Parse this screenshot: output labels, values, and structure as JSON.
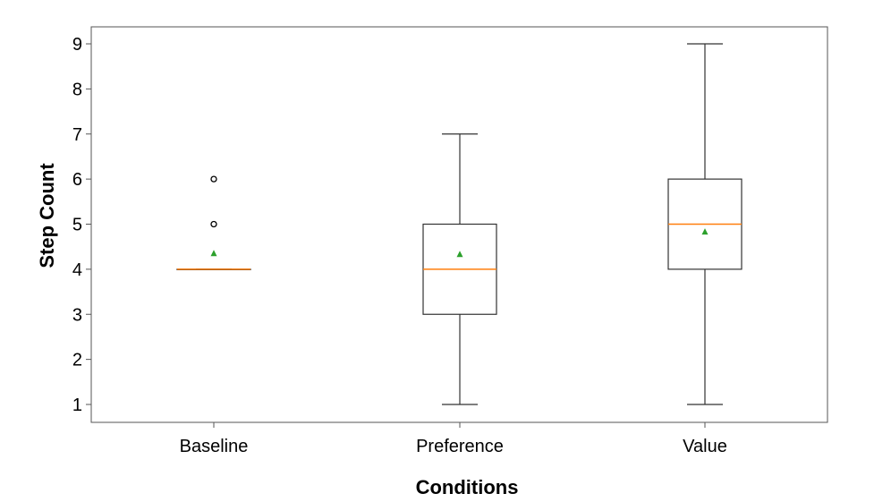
{
  "chart_data": {
    "type": "box",
    "title": "",
    "xlabel": "Conditions",
    "ylabel": "Step Count",
    "ylim": [
      0.6,
      9.4
    ],
    "yticks": [
      1,
      2,
      3,
      4,
      5,
      6,
      7,
      8,
      9
    ],
    "grid": false,
    "categories": [
      "Baseline",
      "Preference",
      "Value"
    ],
    "boxes": [
      {
        "category": "Baseline",
        "whisker_low": 4,
        "q1": 4,
        "median": 4,
        "q3": 4,
        "whisker_high": 4,
        "mean": 4.35,
        "outliers": [
          5,
          6
        ]
      },
      {
        "category": "Preference",
        "whisker_low": 1,
        "q1": 3,
        "median": 4,
        "q3": 5,
        "whisker_high": 7,
        "mean": 4.33,
        "outliers": []
      },
      {
        "category": "Value",
        "whisker_low": 1,
        "q1": 4,
        "median": 5,
        "q3": 6,
        "whisker_high": 9,
        "mean": 4.83,
        "outliers": []
      }
    ],
    "colors": {
      "box": "#333333",
      "median": "#ff7f0e",
      "mean": "#2ca02c",
      "frame": "#555555"
    }
  }
}
